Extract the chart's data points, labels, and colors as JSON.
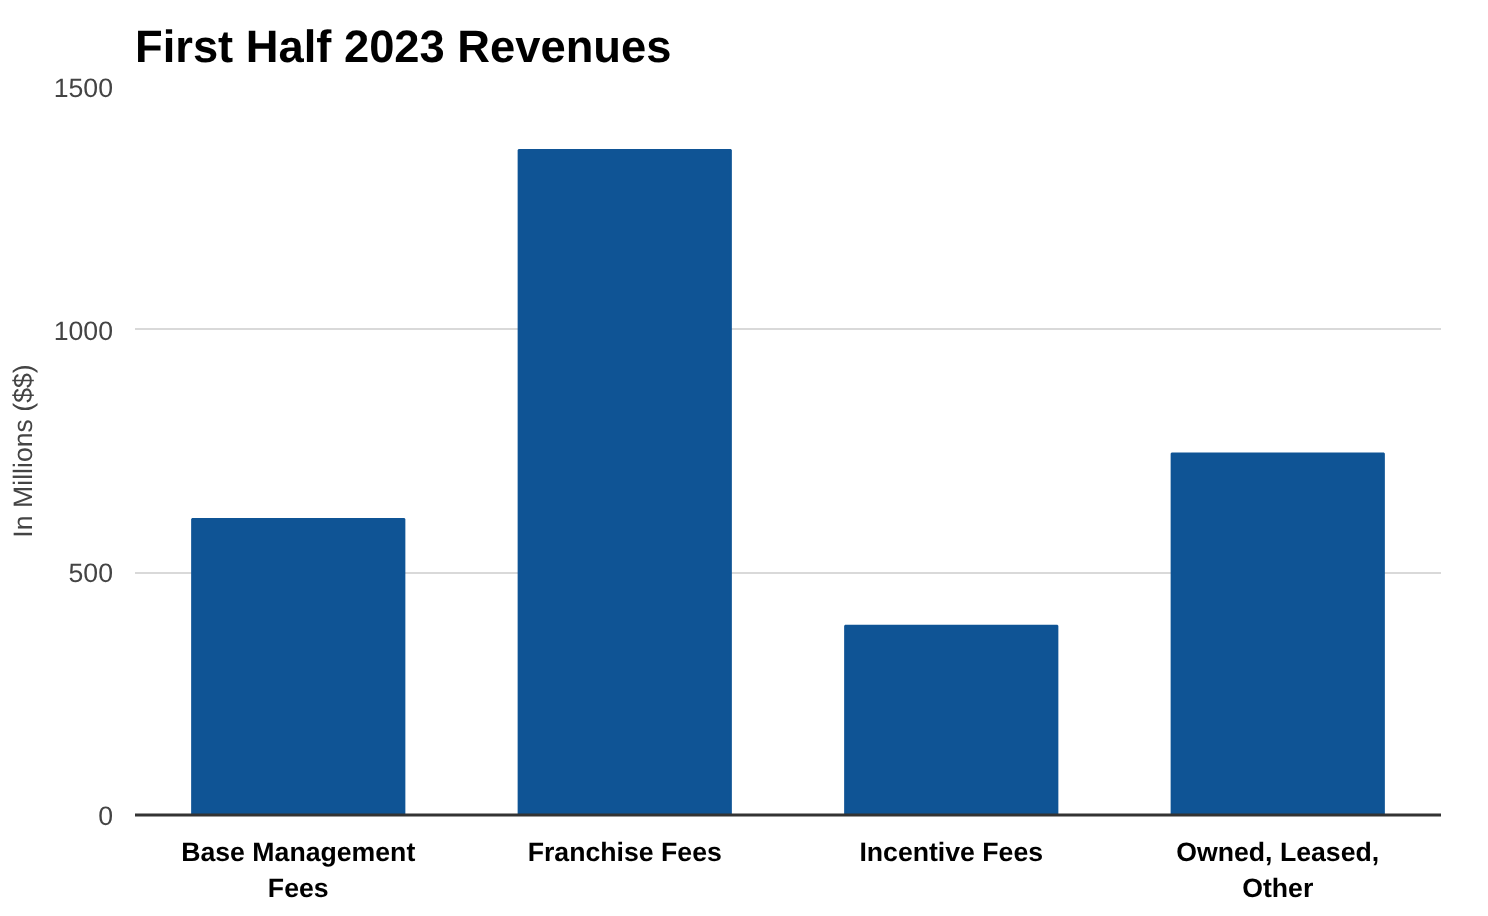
{
  "chart_data": {
    "type": "bar",
    "title": "First Half 2023 Revenues",
    "ylabel": "In Millions ($$)",
    "categories": [
      "Base Management Fees",
      "Franchise Fees",
      "Incentive Fees",
      "Owned, Leased, Other"
    ],
    "values": [
      610,
      1370,
      390,
      745
    ],
    "color": "#0f5495",
    "ylim": [
      0,
      1500
    ],
    "yticks": [
      0,
      500,
      1000,
      1500
    ],
    "grid": "y"
  }
}
